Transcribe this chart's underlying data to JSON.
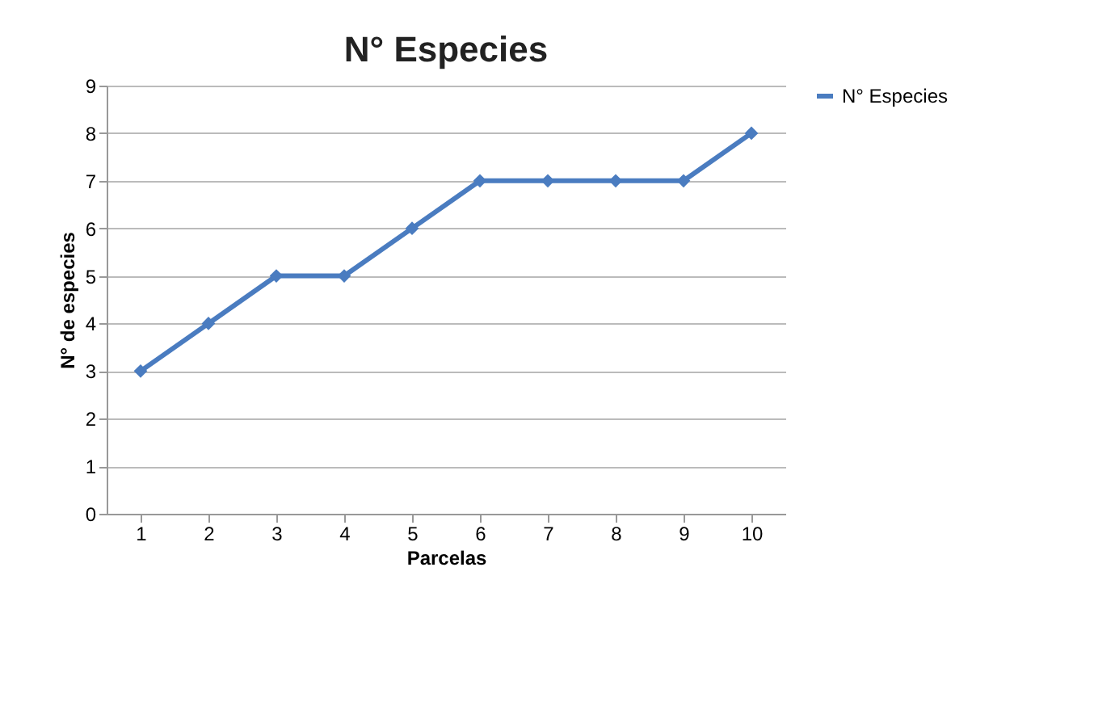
{
  "chart_data": {
    "type": "line",
    "title": "N° Especies",
    "xlabel": "Parcelas",
    "ylabel": "N° de especies",
    "categories": [
      "1",
      "2",
      "3",
      "4",
      "5",
      "6",
      "7",
      "8",
      "9",
      "10"
    ],
    "series": [
      {
        "name": "N° Especies",
        "color": "#4a7cc0",
        "values": [
          3,
          4,
          5,
          5,
          6,
          7,
          7,
          7,
          7,
          8
        ]
      }
    ],
    "ylim": [
      0,
      9
    ],
    "yticks": [
      0,
      1,
      2,
      3,
      4,
      5,
      6,
      7,
      8,
      9
    ],
    "grid": "y",
    "legend": "right",
    "marker": "diamond",
    "line_style": "solid"
  }
}
